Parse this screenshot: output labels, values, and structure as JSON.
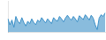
{
  "chart_data": {
    "type": "area",
    "values": [
      55,
      30,
      50,
      20,
      65,
      45,
      35,
      60,
      40,
      25,
      45,
      35,
      55,
      40,
      30,
      50,
      42,
      60,
      48,
      38,
      55,
      45,
      35,
      60,
      50,
      45,
      65,
      55,
      42,
      58,
      70,
      58,
      50,
      65,
      55,
      42,
      68,
      60,
      52,
      72,
      62,
      50,
      70,
      58,
      30,
      10,
      58,
      72,
      65,
      80
    ],
    "color": "#3a8fc7",
    "ylim": [
      0,
      130
    ],
    "grid": false,
    "tick_labels": false
  }
}
